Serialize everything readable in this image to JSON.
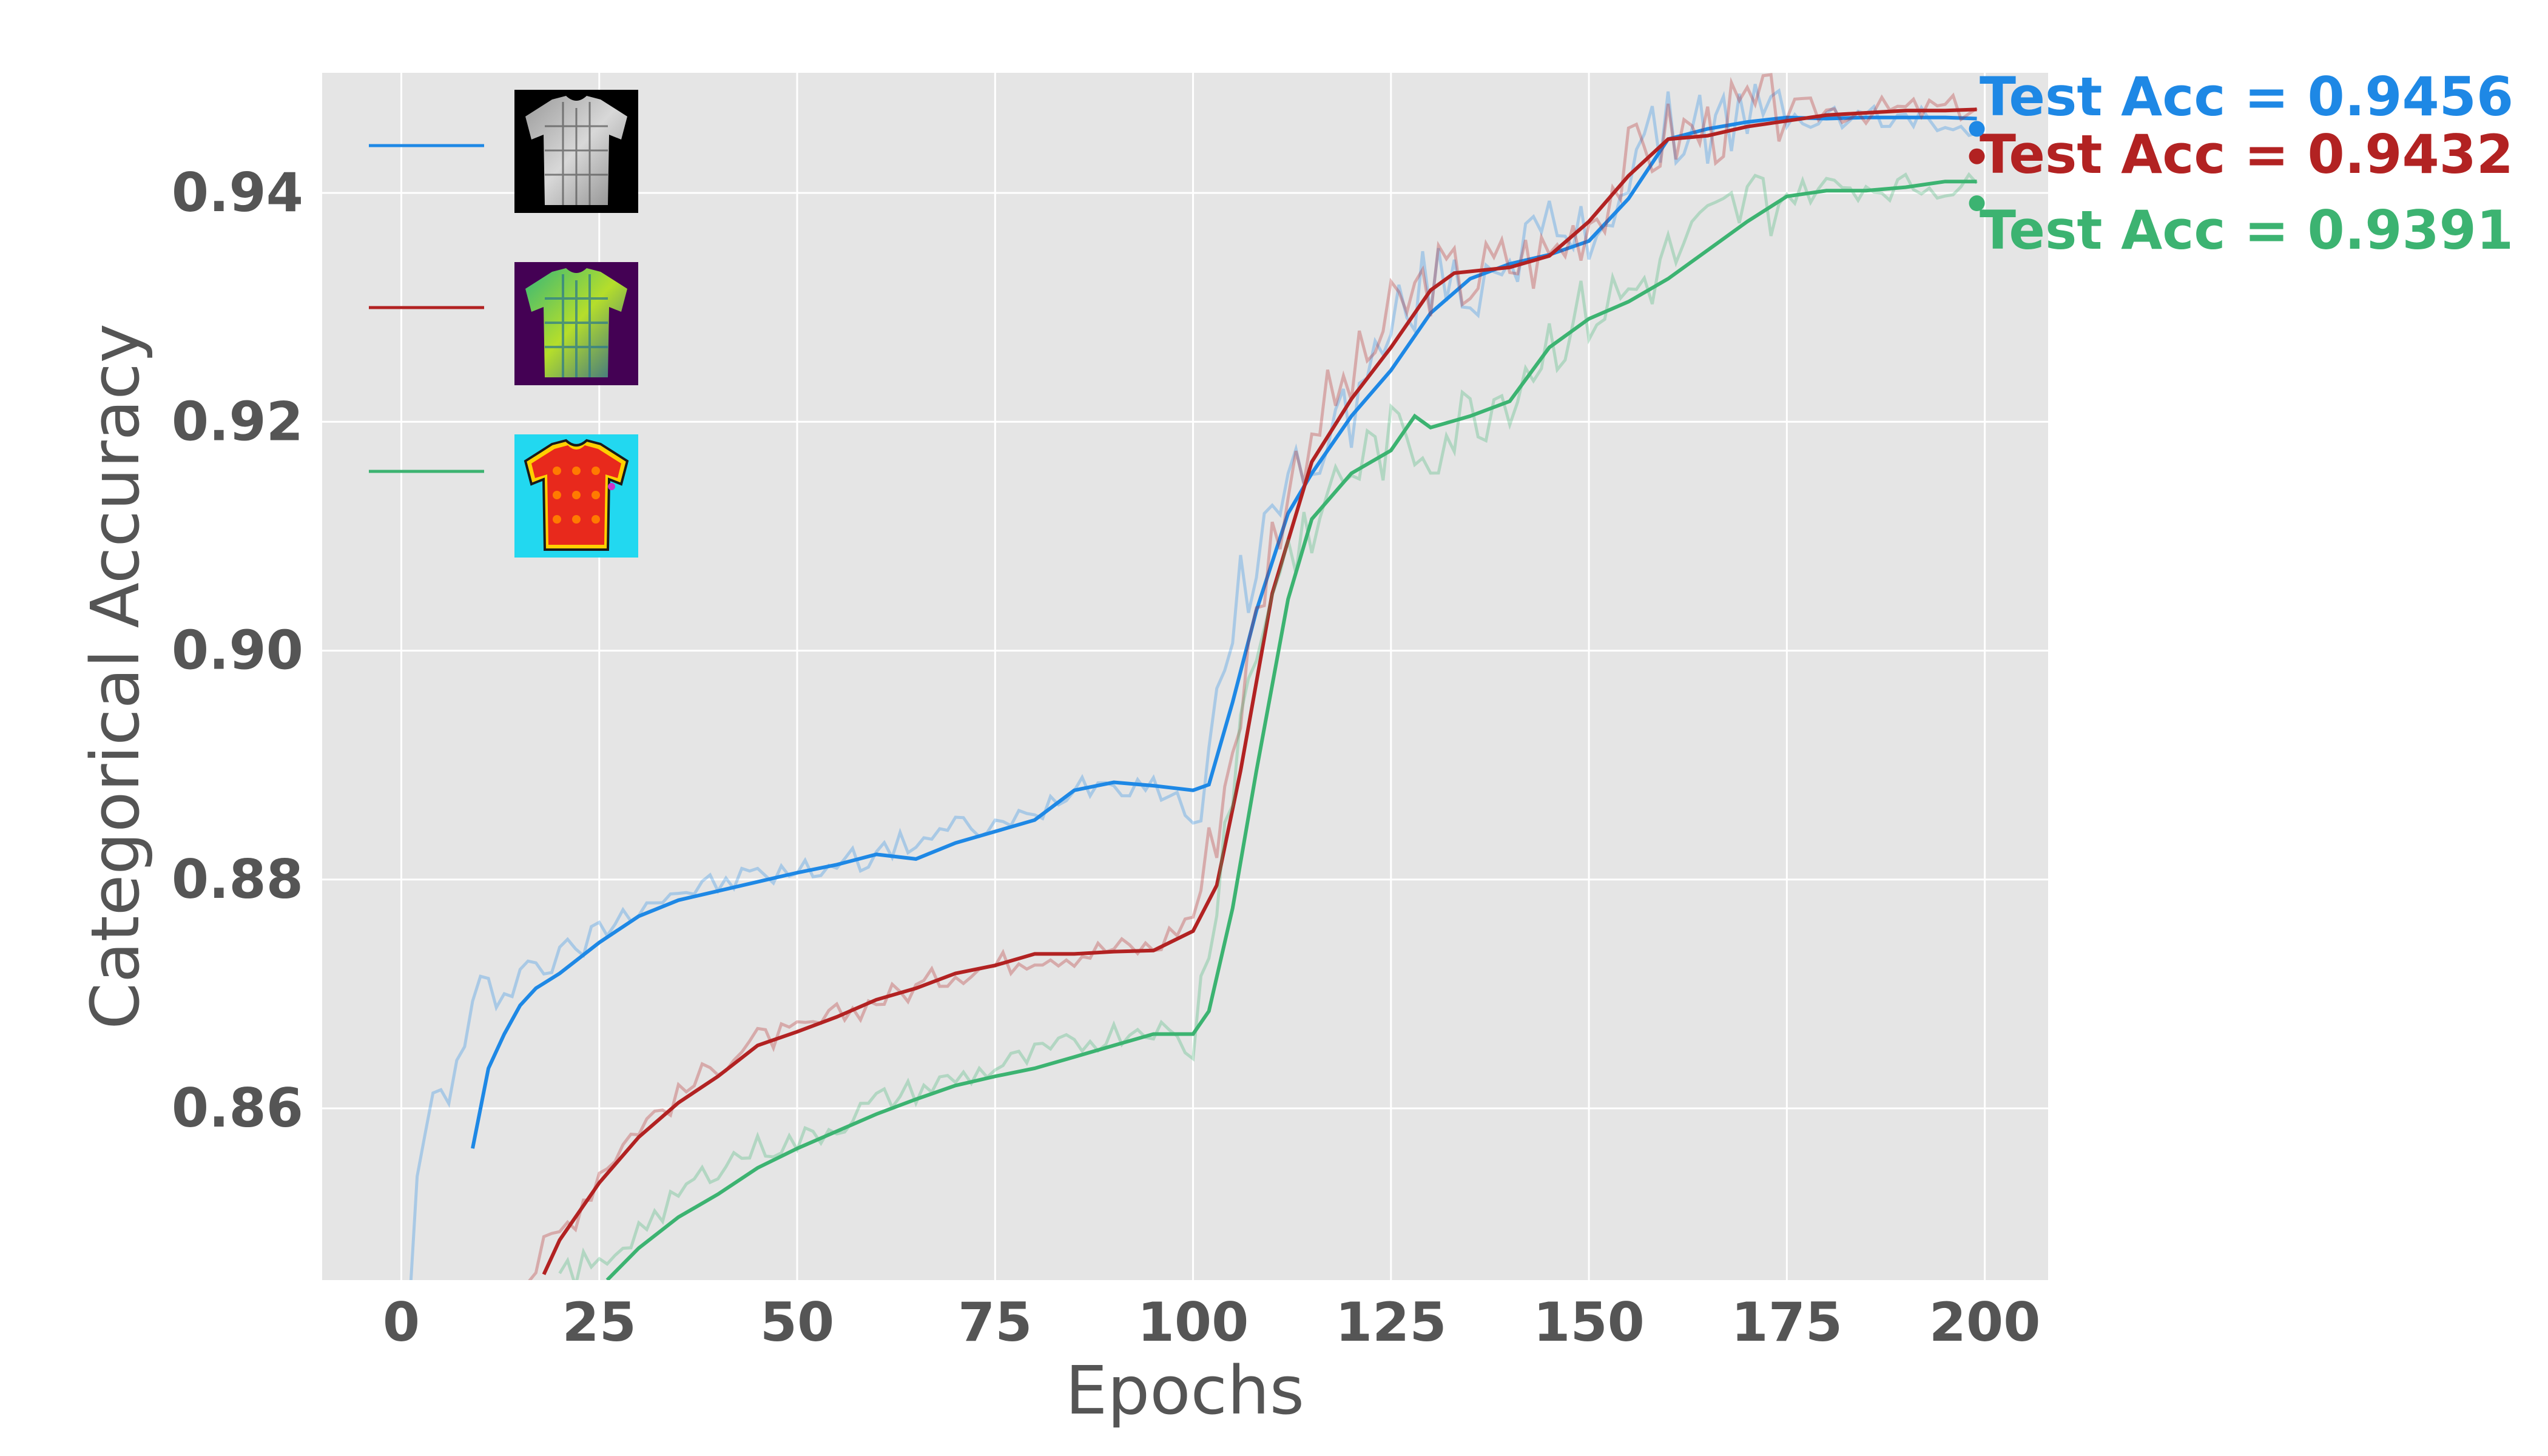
{
  "chart_data": {
    "type": "line",
    "xlabel": "Epochs",
    "ylabel": "Categorical Accuracy",
    "xlim": [
      -10,
      208
    ],
    "ylim": [
      0.845,
      0.9505
    ],
    "xticks": [
      0,
      25,
      50,
      75,
      100,
      125,
      150,
      175,
      200
    ],
    "yticks": [
      0.86,
      0.88,
      0.9,
      0.92,
      0.94
    ],
    "ytick_labels": [
      "0.86",
      "0.88",
      "0.90",
      "0.92",
      "0.94"
    ],
    "grid": true,
    "legend_position": "top-left",
    "legend_content": "shirt image thumbnails",
    "series": [
      {
        "color": "#1e88e5",
        "legend_thumbnail": "grayscale-shirt-image",
        "test_acc_label": "Test Acc = 0.9456",
        "final_point": [
          199,
          0.9456
        ],
        "smoothed": [
          [
            9,
            0.8565
          ],
          [
            11,
            0.8635
          ],
          [
            13,
            0.8665
          ],
          [
            15,
            0.869
          ],
          [
            17,
            0.8705
          ],
          [
            20,
            0.8718
          ],
          [
            25,
            0.8745
          ],
          [
            30,
            0.8768
          ],
          [
            35,
            0.8782
          ],
          [
            40,
            0.879
          ],
          [
            45,
            0.8798
          ],
          [
            50,
            0.8806
          ],
          [
            55,
            0.8813
          ],
          [
            60,
            0.8822
          ],
          [
            65,
            0.8818
          ],
          [
            70,
            0.8832
          ],
          [
            75,
            0.8842
          ],
          [
            80,
            0.8852
          ],
          [
            85,
            0.8878
          ],
          [
            90,
            0.8885
          ],
          [
            95,
            0.8882
          ],
          [
            100,
            0.8878
          ],
          [
            102,
            0.8883
          ],
          [
            105,
            0.8955
          ],
          [
            108,
            0.9035
          ],
          [
            112,
            0.912
          ],
          [
            115,
            0.9155
          ],
          [
            120,
            0.9205
          ],
          [
            125,
            0.9245
          ],
          [
            130,
            0.9295
          ],
          [
            135,
            0.9325
          ],
          [
            140,
            0.9338
          ],
          [
            145,
            0.9346
          ],
          [
            150,
            0.9358
          ],
          [
            155,
            0.9395
          ],
          [
            160,
            0.9447
          ],
          [
            165,
            0.9456
          ],
          [
            170,
            0.9462
          ],
          [
            175,
            0.9466
          ],
          [
            180,
            0.9465
          ],
          [
            185,
            0.9466
          ],
          [
            190,
            0.9466
          ],
          [
            195,
            0.9466
          ],
          [
            199,
            0.9465
          ]
        ],
        "raw_anchor": [
          [
            1,
            0.844
          ],
          [
            2,
            0.853
          ],
          [
            4,
            0.861
          ],
          [
            6,
            0.8615
          ],
          [
            8,
            0.8655
          ],
          [
            10,
            0.8705
          ],
          [
            12,
            0.87
          ],
          [
            15,
            0.8722
          ],
          [
            20,
            0.873
          ],
          [
            25,
            0.8755
          ],
          [
            30,
            0.878
          ],
          [
            35,
            0.879
          ],
          [
            40,
            0.8795
          ],
          [
            45,
            0.8805
          ],
          [
            50,
            0.8805
          ],
          [
            55,
            0.8815
          ],
          [
            60,
            0.8822
          ],
          [
            65,
            0.8835
          ],
          [
            70,
            0.8845
          ],
          [
            75,
            0.8845
          ],
          [
            80,
            0.8855
          ],
          [
            85,
            0.8885
          ],
          [
            90,
            0.8885
          ],
          [
            95,
            0.8885
          ],
          [
            100,
            0.8855
          ],
          [
            103,
            0.8935
          ],
          [
            106,
            0.905
          ],
          [
            110,
            0.912
          ],
          [
            115,
            0.9175
          ],
          [
            120,
            0.921
          ],
          [
            125,
            0.928
          ],
          [
            130,
            0.9325
          ],
          [
            135,
            0.9315
          ],
          [
            140,
            0.9355
          ],
          [
            145,
            0.936
          ],
          [
            150,
            0.936
          ],
          [
            155,
            0.942
          ],
          [
            160,
            0.9455
          ],
          [
            165,
            0.946
          ],
          [
            170,
            0.9465
          ],
          [
            180,
            0.9466
          ],
          [
            190,
            0.9465
          ],
          [
            199,
            0.946
          ]
        ]
      },
      {
        "color": "#b22222",
        "legend_thumbnail": "viridis-shirt-image",
        "test_acc_label": "Test Acc = 0.9432",
        "final_point": [
          199,
          0.9432
        ],
        "smoothed": [
          [
            18,
            0.8455
          ],
          [
            20,
            0.8485
          ],
          [
            25,
            0.8535
          ],
          [
            30,
            0.8575
          ],
          [
            35,
            0.8605
          ],
          [
            40,
            0.8628
          ],
          [
            45,
            0.8655
          ],
          [
            50,
            0.8667
          ],
          [
            55,
            0.868
          ],
          [
            60,
            0.8695
          ],
          [
            65,
            0.8705
          ],
          [
            70,
            0.8718
          ],
          [
            75,
            0.8725
          ],
          [
            80,
            0.8735
          ],
          [
            85,
            0.8735
          ],
          [
            90,
            0.8737
          ],
          [
            95,
            0.8738
          ],
          [
            100,
            0.8755
          ],
          [
            103,
            0.8795
          ],
          [
            106,
            0.8895
          ],
          [
            110,
            0.905
          ],
          [
            115,
            0.9165
          ],
          [
            120,
            0.922
          ],
          [
            125,
            0.9265
          ],
          [
            130,
            0.9315
          ],
          [
            133,
            0.933
          ],
          [
            140,
            0.9335
          ],
          [
            145,
            0.9345
          ],
          [
            150,
            0.9375
          ],
          [
            155,
            0.9415
          ],
          [
            160,
            0.9447
          ],
          [
            165,
            0.945
          ],
          [
            170,
            0.9458
          ],
          [
            175,
            0.9463
          ],
          [
            180,
            0.9468
          ],
          [
            185,
            0.947
          ],
          [
            190,
            0.9472
          ],
          [
            195,
            0.9472
          ],
          [
            199,
            0.9473
          ]
        ],
        "raw_anchor": [
          [
            16,
            0.8455
          ],
          [
            20,
            0.849
          ],
          [
            25,
            0.8545
          ],
          [
            30,
            0.8585
          ],
          [
            35,
            0.861
          ],
          [
            40,
            0.864
          ],
          [
            45,
            0.866
          ],
          [
            50,
            0.8665
          ],
          [
            55,
            0.868
          ],
          [
            60,
            0.8695
          ],
          [
            65,
            0.8705
          ],
          [
            70,
            0.872
          ],
          [
            75,
            0.8725
          ],
          [
            80,
            0.8735
          ],
          [
            85,
            0.8735
          ],
          [
            90,
            0.874
          ],
          [
            95,
            0.874
          ],
          [
            100,
            0.877
          ],
          [
            103,
            0.885
          ],
          [
            106,
            0.8955
          ],
          [
            110,
            0.91
          ],
          [
            115,
            0.92
          ],
          [
            120,
            0.9235
          ],
          [
            125,
            0.929
          ],
          [
            130,
            0.9325
          ],
          [
            135,
            0.9325
          ],
          [
            140,
            0.934
          ],
          [
            145,
            0.9345
          ],
          [
            150,
            0.938
          ],
          [
            155,
            0.9425
          ],
          [
            160,
            0.945
          ],
          [
            165,
            0.9455
          ],
          [
            170,
            0.947
          ],
          [
            180,
            0.9472
          ],
          [
            190,
            0.9472
          ],
          [
            199,
            0.9475
          ]
        ]
      },
      {
        "color": "#3cb371",
        "legend_thumbnail": "jet-shirt-image",
        "test_acc_label": "Test Acc = 0.9391",
        "final_point": [
          199,
          0.9391
        ],
        "smoothed": [
          [
            26,
            0.845
          ],
          [
            30,
            0.8478
          ],
          [
            35,
            0.8505
          ],
          [
            40,
            0.8525
          ],
          [
            45,
            0.8548
          ],
          [
            50,
            0.8565
          ],
          [
            55,
            0.858
          ],
          [
            60,
            0.8595
          ],
          [
            65,
            0.8608
          ],
          [
            70,
            0.862
          ],
          [
            75,
            0.8628
          ],
          [
            80,
            0.8635
          ],
          [
            85,
            0.8645
          ],
          [
            90,
            0.8655
          ],
          [
            95,
            0.8665
          ],
          [
            100,
            0.8665
          ],
          [
            102,
            0.8685
          ],
          [
            105,
            0.8775
          ],
          [
            108,
            0.8895
          ],
          [
            112,
            0.9045
          ],
          [
            115,
            0.9115
          ],
          [
            120,
            0.9155
          ],
          [
            125,
            0.9175
          ],
          [
            128,
            0.9205
          ],
          [
            130,
            0.9195
          ],
          [
            135,
            0.9205
          ],
          [
            140,
            0.9218
          ],
          [
            145,
            0.9265
          ],
          [
            150,
            0.929
          ],
          [
            155,
            0.9305
          ],
          [
            160,
            0.9325
          ],
          [
            165,
            0.935
          ],
          [
            170,
            0.9375
          ],
          [
            175,
            0.9397
          ],
          [
            180,
            0.9402
          ],
          [
            185,
            0.9402
          ],
          [
            190,
            0.9405
          ],
          [
            195,
            0.941
          ],
          [
            199,
            0.941
          ]
        ],
        "raw_anchor": [
          [
            20,
            0.8455
          ],
          [
            25,
            0.8462
          ],
          [
            30,
            0.8495
          ],
          [
            35,
            0.8525
          ],
          [
            40,
            0.855
          ],
          [
            45,
            0.8565
          ],
          [
            50,
            0.857
          ],
          [
            55,
            0.8585
          ],
          [
            60,
            0.8605
          ],
          [
            65,
            0.8615
          ],
          [
            70,
            0.8625
          ],
          [
            75,
            0.8635
          ],
          [
            80,
            0.8645
          ],
          [
            85,
            0.8655
          ],
          [
            90,
            0.8665
          ],
          [
            95,
            0.8672
          ],
          [
            100,
            0.865
          ],
          [
            103,
            0.88
          ],
          [
            106,
            0.8935
          ],
          [
            110,
            0.906
          ],
          [
            115,
            0.912
          ],
          [
            120,
            0.916
          ],
          [
            125,
            0.918
          ],
          [
            130,
            0.918
          ],
          [
            135,
            0.9205
          ],
          [
            140,
            0.923
          ],
          [
            145,
            0.927
          ],
          [
            150,
            0.9295
          ],
          [
            155,
            0.931
          ],
          [
            160,
            0.934
          ],
          [
            165,
            0.9365
          ],
          [
            170,
            0.939
          ],
          [
            180,
            0.9405
          ],
          [
            190,
            0.9405
          ],
          [
            199,
            0.9405
          ]
        ]
      }
    ]
  }
}
